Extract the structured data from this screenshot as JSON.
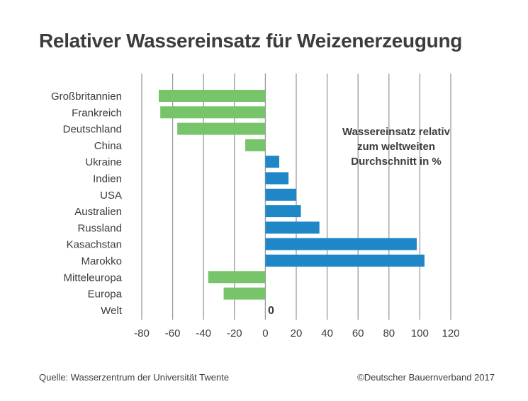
{
  "chart_data": {
    "type": "bar",
    "orientation": "horizontal",
    "title": "Relativer Wassereinsatz für Weizenerzeugung",
    "annotation_lines": [
      "Wassereinsatz relativ",
      "zum weltweiten",
      "Durchschnitt in %"
    ],
    "categories": [
      "Großbritannien",
      "Frankreich",
      "Deutschland",
      "China",
      "Ukraine",
      "Indien",
      "USA",
      "Australien",
      "Russland",
      "Kasachstan",
      "Marokko",
      "Mitteleuropa",
      "Europa",
      "Welt"
    ],
    "values": [
      -69,
      -68,
      -57,
      -13,
      9,
      15,
      20,
      23,
      35,
      98,
      103,
      -37,
      -27,
      0
    ],
    "xlim": [
      -80,
      120
    ],
    "xticks": [
      -80,
      -60,
      -40,
      -20,
      0,
      20,
      40,
      60,
      80,
      100,
      120
    ],
    "grid": true,
    "zero_value_label": "0",
    "colors": {
      "negative": "#77c46a",
      "positive": "#1f86c8",
      "grid": "#9a9a9a"
    }
  },
  "footer": {
    "source": "Quelle: Wasserzentrum der Universität Twente",
    "copyright": "©Deutscher Bauernverband 2017"
  }
}
